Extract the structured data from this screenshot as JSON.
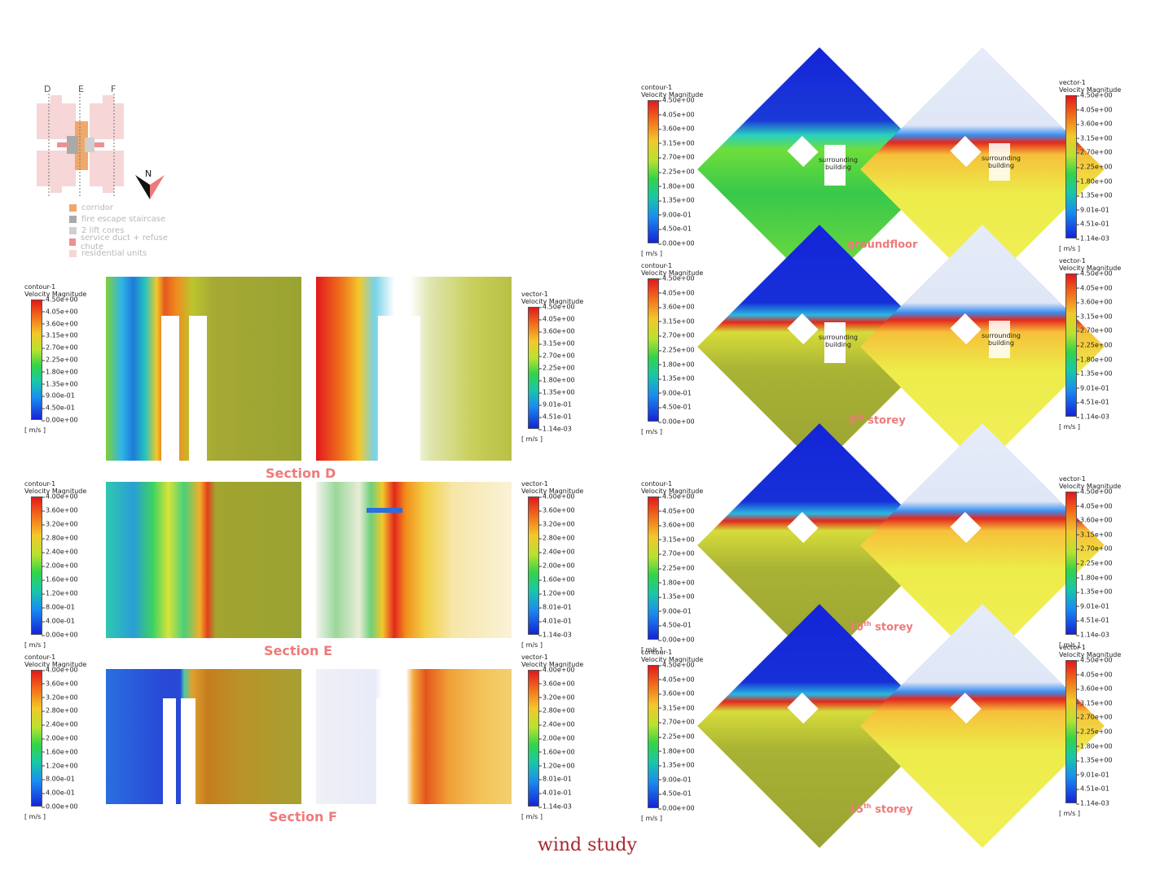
{
  "key_plan": {
    "axis_labels": [
      "D",
      "E",
      "F"
    ],
    "north_label": "N",
    "legend": [
      {
        "label": "corridor",
        "color": "#f0a86a"
      },
      {
        "label": "fire escape staircase",
        "color": "#a9a9a9"
      },
      {
        "label": "2 lift cores",
        "color": "#cfcfcf"
      },
      {
        "label": "service duct + refuse chute",
        "color": "#ef8f8f"
      },
      {
        "label": "residential units",
        "color": "#f6d6d6"
      }
    ]
  },
  "sections": [
    {
      "label": "Section D",
      "contour": {
        "name": "contour-1",
        "quantity": "Velocity Magnitude",
        "unit": "[ m/s ]",
        "ticks": [
          "4.50e+00",
          "4.05e+00",
          "3.60e+00",
          "3.15e+00",
          "2.70e+00",
          "2.25e+00",
          "1.80e+00",
          "1.35e+00",
          "9.00e-01",
          "4.50e-01",
          "0.00e+00"
        ]
      },
      "vector": {
        "name": "vector-1",
        "quantity": "Velocity Magnitude",
        "unit": "[ m/s ]",
        "ticks": [
          "4.50e+00",
          "4.05e+00",
          "3.60e+00",
          "3.15e+00",
          "2.70e+00",
          "2.25e+00",
          "1.80e+00",
          "1.35e+00",
          "9.01e-01",
          "4.51e-01",
          "1.14e-03"
        ]
      }
    },
    {
      "label": "Section E",
      "contour": {
        "name": "contour-1",
        "quantity": "Velocity Magnitude",
        "unit": "[ m/s ]",
        "ticks": [
          "4.00e+00",
          "3.60e+00",
          "3.20e+00",
          "2.80e+00",
          "2.40e+00",
          "2.00e+00",
          "1.60e+00",
          "1.20e+00",
          "8.00e-01",
          "4.00e-01",
          "0.00e+00"
        ]
      },
      "vector": {
        "name": "vector-1",
        "quantity": "Velocity Magnitude",
        "unit": "[ m/s ]",
        "ticks": [
          "4.00e+00",
          "3.60e+00",
          "3.20e+00",
          "2.80e+00",
          "2.40e+00",
          "2.00e+00",
          "1.60e+00",
          "1.20e+00",
          "8.01e-01",
          "4.01e-01",
          "1.14e-03"
        ]
      }
    },
    {
      "label": "Section F",
      "contour": {
        "name": "contour-1",
        "quantity": "Velocity Magnitude",
        "unit": "[ m/s ]",
        "ticks": [
          "4.00e+00",
          "3.60e+00",
          "3.20e+00",
          "2.80e+00",
          "2.40e+00",
          "2.00e+00",
          "1.60e+00",
          "1.20e+00",
          "8.00e-01",
          "4.00e-01",
          "0.00e+00"
        ]
      },
      "vector": {
        "name": "vector-1",
        "quantity": "Velocity Magnitude",
        "unit": "[ m/s ]",
        "ticks": [
          "4.00e+00",
          "3.60e+00",
          "3.20e+00",
          "2.80e+00",
          "2.40e+00",
          "2.00e+00",
          "1.60e+00",
          "1.20e+00",
          "8.01e-01",
          "4.01e-01",
          "1.14e-03"
        ]
      }
    }
  ],
  "floors": [
    {
      "label_main": "groundfloor",
      "label_sup": "",
      "surrounding_label": "surrounding building",
      "contour": {
        "name": "contour-1",
        "quantity": "Velocity Magnitude",
        "unit": "[ m/s ]",
        "ticks": [
          "4.50e+00",
          "4.05e+00",
          "3.60e+00",
          "3.15e+00",
          "2.70e+00",
          "2.25e+00",
          "1.80e+00",
          "1.35e+00",
          "9.00e-01",
          "4.50e-01",
          "0.00e+00"
        ]
      },
      "vector": {
        "name": "vector-1",
        "quantity": "Velocity Magnitude",
        "unit": "[ m/s ]",
        "ticks": [
          "4.50e+00",
          "4.05e+00",
          "3.60e+00",
          "3.15e+00",
          "2.70e+00",
          "2.25e+00",
          "1.80e+00",
          "1.35e+00",
          "9.01e-01",
          "4.51e-01",
          "1.14e-03"
        ]
      }
    },
    {
      "label_main": "5",
      "label_sup": "th",
      "label_rest": " storey",
      "surrounding_label": "surrounding building",
      "contour": {
        "name": "contour-1",
        "quantity": "Velocity Magnitude",
        "unit": "[ m/s ]",
        "ticks": [
          "4.50e+00",
          "4.05e+00",
          "3.60e+00",
          "3.15e+00",
          "2.70e+00",
          "2.25e+00",
          "1.80e+00",
          "1.35e+00",
          "9.00e-01",
          "4.50e-01",
          "0.00e+00"
        ]
      },
      "vector": {
        "name": "vector-1",
        "quantity": "Velocity Magnitude",
        "unit": "[ m/s ]",
        "ticks": [
          "4.50e+00",
          "4.05e+00",
          "3.60e+00",
          "3.15e+00",
          "2.70e+00",
          "2.25e+00",
          "1.80e+00",
          "1.35e+00",
          "9.01e-01",
          "4.51e-01",
          "1.14e-03"
        ]
      }
    },
    {
      "label_main": "10",
      "label_sup": "th",
      "label_rest": " storey",
      "surrounding_label": "",
      "contour": {
        "name": "contour-1",
        "quantity": "Velocity Magnitude",
        "unit": "[ m/s ]",
        "ticks": [
          "4.50e+00",
          "4.05e+00",
          "3.60e+00",
          "3.15e+00",
          "2.70e+00",
          "2.25e+00",
          "1.80e+00",
          "1.35e+00",
          "9.00e-01",
          "4.50e-01",
          "0.00e+00"
        ]
      },
      "vector": {
        "name": "vector-1",
        "quantity": "Velocity Magnitude",
        "unit": "[ m/s ]",
        "ticks": [
          "4.50e+00",
          "4.05e+00",
          "3.60e+00",
          "3.15e+00",
          "2.70e+00",
          "2.25e+00",
          "1.80e+00",
          "1.35e+00",
          "9.01e-01",
          "4.51e-01",
          "1.14e-03"
        ]
      }
    },
    {
      "label_main": "15",
      "label_sup": "th",
      "label_rest": " storey",
      "surrounding_label": "",
      "contour": {
        "name": "contour-1",
        "quantity": "Velocity Magnitude",
        "unit": "[ m/s ]",
        "ticks": [
          "4.50e+00",
          "4.05e+00",
          "3.60e+00",
          "3.15e+00",
          "2.70e+00",
          "2.25e+00",
          "1.80e+00",
          "1.35e+00",
          "9.00e-01",
          "4.50e-01",
          "0.00e+00"
        ]
      },
      "vector": {
        "name": "vector-1",
        "quantity": "Velocity Magnitude",
        "unit": "[ m/s ]",
        "ticks": [
          "4.50e+00",
          "4.05e+00",
          "3.60e+00",
          "3.15e+00",
          "2.70e+00",
          "2.25e+00",
          "1.80e+00",
          "1.35e+00",
          "9.01e-01",
          "4.51e-01",
          "1.14e-03"
        ]
      }
    }
  ],
  "caption": "wind study",
  "colors": {
    "label": "#ef7a7a",
    "caption": "#a8262c",
    "field_far": "#9aa332",
    "field_fast": "#e3181c",
    "field_slow": "#1424d8"
  }
}
